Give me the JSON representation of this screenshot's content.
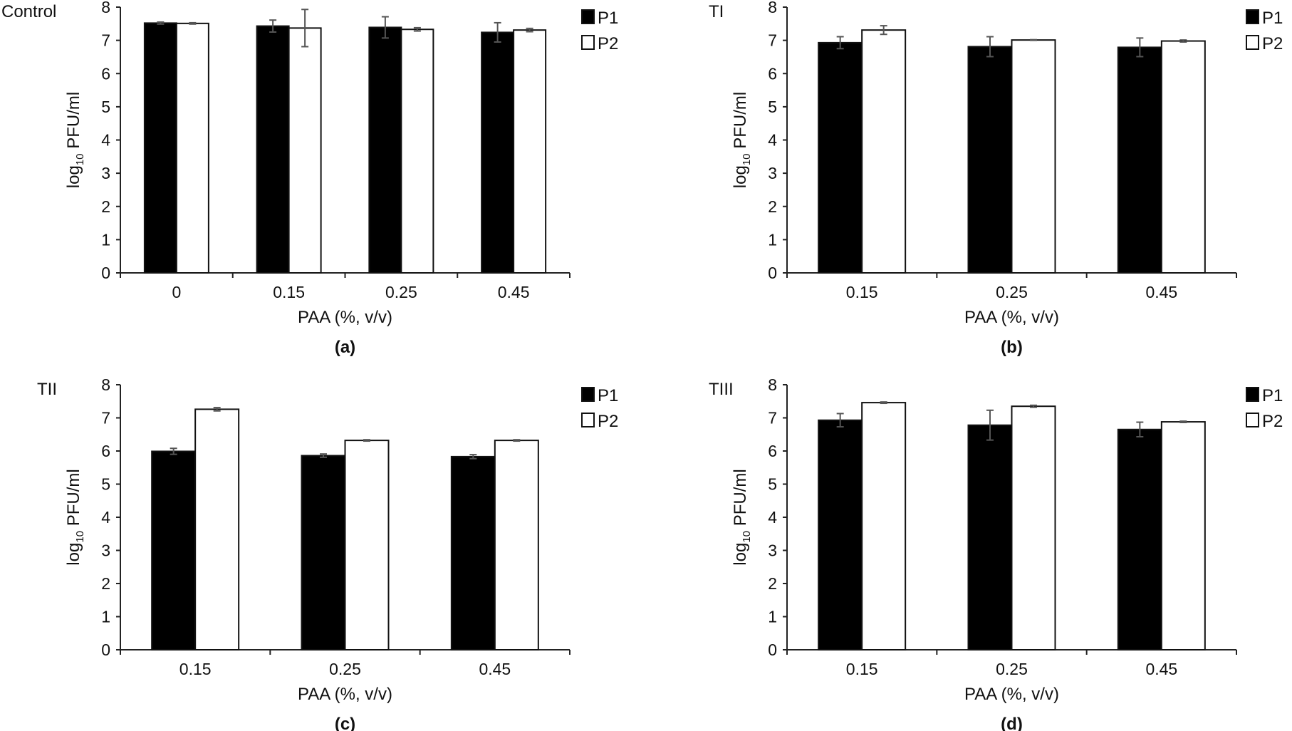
{
  "chart_data": [
    {
      "type": "bar",
      "panel_label": "(a)",
      "title": "Control",
      "xlabel": "PAA (%, v/v)",
      "ylabel": "log10 PFU/ml",
      "ylim": [
        0,
        8
      ],
      "yticks": [
        0,
        1,
        2,
        3,
        4,
        5,
        6,
        7,
        8
      ],
      "categories": [
        "0",
        "0.15",
        "0.25",
        "0.45"
      ],
      "legend_position": "top-right",
      "series": [
        {
          "name": "P1",
          "color": "#000000",
          "values": [
            7.52,
            7.43,
            7.39,
            7.24
          ],
          "errors": [
            0.03,
            0.18,
            0.32,
            0.29
          ]
        },
        {
          "name": "P2",
          "color": "#ffffff",
          "values": [
            7.51,
            7.37,
            7.33,
            7.31
          ],
          "errors": [
            0.02,
            0.56,
            0.05,
            0.05
          ]
        }
      ]
    },
    {
      "type": "bar",
      "panel_label": "(b)",
      "title": "TI",
      "xlabel": "PAA (%, v/v)",
      "ylabel": "log10 PFU/ml",
      "ylim": [
        0,
        8
      ],
      "yticks": [
        0,
        1,
        2,
        3,
        4,
        5,
        6,
        7,
        8
      ],
      "categories": [
        "0.15",
        "0.25",
        "0.45"
      ],
      "legend_position": "top-right",
      "series": [
        {
          "name": "P1",
          "color": "#000000",
          "values": [
            6.93,
            6.81,
            6.79
          ],
          "errors": [
            0.18,
            0.3,
            0.28
          ]
        },
        {
          "name": "P2",
          "color": "#ffffff",
          "values": [
            7.31,
            7.01,
            6.98
          ],
          "errors": [
            0.13,
            0.01,
            0.03
          ]
        }
      ]
    },
    {
      "type": "bar",
      "panel_label": "(c)",
      "title": "TII",
      "xlabel": "PAA (%, v/v)",
      "ylabel": "log10 PFU/ml",
      "ylim": [
        0,
        8
      ],
      "yticks": [
        0,
        1,
        2,
        3,
        4,
        5,
        6,
        7,
        8
      ],
      "categories": [
        "0.15",
        "0.25",
        "0.45"
      ],
      "legend_position": "top-right",
      "series": [
        {
          "name": "P1",
          "color": "#000000",
          "values": [
            5.99,
            5.86,
            5.83
          ],
          "errors": [
            0.09,
            0.05,
            0.06
          ]
        },
        {
          "name": "P2",
          "color": "#ffffff",
          "values": [
            7.26,
            6.32,
            6.32
          ],
          "errors": [
            0.05,
            0.02,
            0.02
          ]
        }
      ]
    },
    {
      "type": "bar",
      "panel_label": "(d)",
      "title": "TIII",
      "xlabel": "PAA (%, v/v)",
      "ylabel": "log10 PFU/ml",
      "ylim": [
        0,
        8
      ],
      "yticks": [
        0,
        1,
        2,
        3,
        4,
        5,
        6,
        7,
        8
      ],
      "categories": [
        "0.15",
        "0.25",
        "0.45"
      ],
      "legend_position": "top-right",
      "series": [
        {
          "name": "P1",
          "color": "#000000",
          "values": [
            6.93,
            6.78,
            6.65
          ],
          "errors": [
            0.2,
            0.45,
            0.22
          ]
        },
        {
          "name": "P2",
          "color": "#ffffff",
          "values": [
            7.46,
            7.35,
            6.88
          ],
          "errors": [
            0.02,
            0.03,
            0.02
          ]
        }
      ]
    }
  ]
}
